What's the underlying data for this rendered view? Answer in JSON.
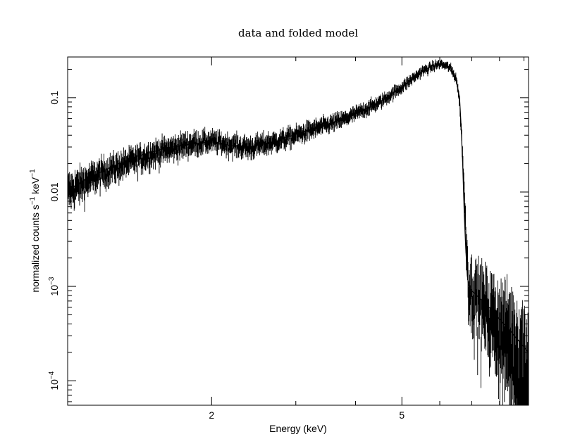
{
  "chart_data": {
    "type": "line",
    "title": "data and folded model",
    "xlabel": "Energy (keV)",
    "ylabel": "normalized counts s⁻¹ keV⁻¹",
    "xscale": "log",
    "yscale": "log",
    "xlim": [
      1.0,
      9.2
    ],
    "ylim": [
      5.5e-05,
      0.27
    ],
    "xticks": [
      {
        "value": 2,
        "label": "2"
      },
      {
        "value": 5,
        "label": "5"
      }
    ],
    "yticks": [
      {
        "value": 0.1,
        "label": "0.1"
      },
      {
        "value": 0.01,
        "label": "0.01"
      },
      {
        "value": 0.001,
        "base": "10",
        "exp": "−3"
      },
      {
        "value": 0.0001,
        "base": "10",
        "exp": "−4"
      }
    ],
    "grid": false,
    "series": [
      {
        "kind": "model",
        "x": [
          1.0,
          1.1,
          1.25,
          1.4,
          1.6,
          1.8,
          2.0,
          2.2,
          2.4,
          2.7,
          3.0,
          3.5,
          4.0,
          4.5,
          5.0,
          5.5,
          5.8,
          6.1,
          6.3,
          6.5,
          6.6,
          6.65,
          6.7,
          6.75,
          6.8,
          6.85,
          6.9,
          7.0,
          7.5,
          8.0,
          8.5,
          9.2
        ],
        "y": [
          0.0105,
          0.014,
          0.019,
          0.024,
          0.029,
          0.032,
          0.034,
          0.031,
          0.03,
          0.034,
          0.041,
          0.052,
          0.068,
          0.09,
          0.13,
          0.19,
          0.22,
          0.22,
          0.2,
          0.15,
          0.1,
          0.05,
          0.02,
          0.006,
          0.0025,
          0.0013,
          0.001,
          0.0009,
          0.00065,
          0.00045,
          0.00032,
          0.0002
        ]
      }
    ],
    "data_envelope": {
      "x": [
        1.0,
        1.2,
        1.5,
        1.8,
        2.0,
        2.2,
        2.4,
        2.8,
        3.2,
        3.8,
        4.5,
        5.0,
        5.5,
        6.0,
        6.3,
        6.5,
        6.6,
        6.7,
        6.8,
        6.9,
        7.3,
        7.8,
        8.3,
        8.8,
        9.2
      ],
      "y": [
        0.0105,
        0.017,
        0.026,
        0.033,
        0.035,
        0.032,
        0.03,
        0.036,
        0.045,
        0.06,
        0.09,
        0.13,
        0.19,
        0.23,
        0.21,
        0.16,
        0.09,
        0.025,
        0.004,
        0.0011,
        0.0008,
        0.00055,
        0.0004,
        0.00028,
        0.0002
      ],
      "relative_scatter": [
        0.28,
        0.22,
        0.2,
        0.18,
        0.16,
        0.16,
        0.17,
        0.15,
        0.14,
        0.12,
        0.1,
        0.09,
        0.08,
        0.07,
        0.07,
        0.08,
        0.1,
        0.15,
        0.3,
        0.45,
        0.55,
        0.65,
        0.75,
        0.85,
        0.95
      ],
      "count": 1100
    }
  }
}
